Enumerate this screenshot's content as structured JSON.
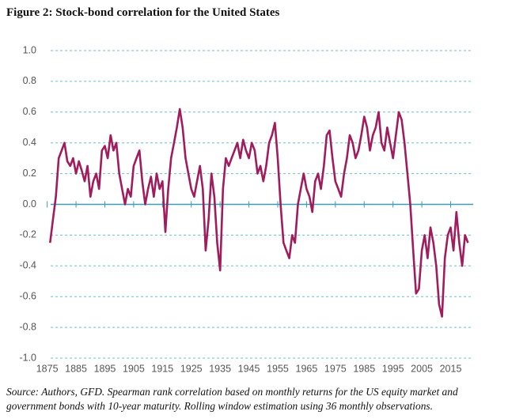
{
  "chart_data": {
    "type": "line",
    "title": "Figure 2: Stock-bond correlation for the United States",
    "source": "Source: Authors, GFD. Spearman rank correlation based on monthly returns for the US equity market and government bonds with 10-year maturity. Rolling window estimation using 36 monthly observations.",
    "color": "#a01c5c",
    "grid": true,
    "x": [
      1876,
      1877,
      1878,
      1879,
      1880,
      1881,
      1882,
      1883,
      1884,
      1885,
      1886,
      1887,
      1888,
      1889,
      1890,
      1891,
      1892,
      1893,
      1894,
      1895,
      1896,
      1897,
      1898,
      1899,
      1900,
      1901,
      1902,
      1903,
      1904,
      1905,
      1906,
      1907,
      1908,
      1909,
      1910,
      1911,
      1912,
      1913,
      1914,
      1915,
      1916,
      1917,
      1918,
      1919,
      1920,
      1921,
      1922,
      1923,
      1924,
      1925,
      1926,
      1927,
      1928,
      1929,
      1930,
      1931,
      1932,
      1933,
      1934,
      1935,
      1936,
      1937,
      1938,
      1939,
      1940,
      1941,
      1942,
      1943,
      1944,
      1945,
      1946,
      1947,
      1948,
      1949,
      1950,
      1951,
      1952,
      1953,
      1954,
      1955,
      1956,
      1957,
      1958,
      1959,
      1960,
      1961,
      1962,
      1963,
      1964,
      1965,
      1966,
      1967,
      1968,
      1969,
      1970,
      1971,
      1972,
      1973,
      1974,
      1975,
      1976,
      1977,
      1978,
      1979,
      1980,
      1981,
      1982,
      1983,
      1984,
      1985,
      1986,
      1987,
      1988,
      1989,
      1990,
      1991,
      1992,
      1993,
      1994,
      1995,
      1996,
      1997,
      1998,
      1999,
      2000,
      2001,
      2002,
      2003,
      2004,
      2005,
      2006,
      2007,
      2008,
      2009,
      2010,
      2011,
      2012,
      2013,
      2014,
      2015,
      2016,
      2017,
      2018,
      2019,
      2020,
      2021
    ],
    "values": [
      -0.25,
      -0.1,
      0.05,
      0.3,
      0.35,
      0.4,
      0.28,
      0.25,
      0.3,
      0.2,
      0.28,
      0.22,
      0.15,
      0.25,
      0.05,
      0.15,
      0.2,
      0.1,
      0.35,
      0.38,
      0.3,
      0.45,
      0.35,
      0.4,
      0.2,
      0.1,
      0.0,
      0.1,
      0.05,
      0.25,
      0.3,
      0.35,
      0.15,
      0.0,
      0.1,
      0.18,
      0.05,
      0.2,
      0.1,
      0.15,
      -0.18,
      0.1,
      0.3,
      0.4,
      0.5,
      0.62,
      0.5,
      0.3,
      0.2,
      0.1,
      0.05,
      0.15,
      0.25,
      0.1,
      -0.3,
      -0.1,
      0.2,
      0.05,
      -0.25,
      -0.43,
      0.1,
      0.3,
      0.25,
      0.3,
      0.35,
      0.4,
      0.3,
      0.42,
      0.35,
      0.3,
      0.4,
      0.35,
      0.2,
      0.25,
      0.15,
      0.25,
      0.4,
      0.45,
      0.53,
      0.3,
      0.0,
      -0.25,
      -0.3,
      -0.35,
      -0.2,
      -0.25,
      0.0,
      0.1,
      0.2,
      0.1,
      0.05,
      -0.05,
      0.15,
      0.2,
      0.1,
      0.25,
      0.45,
      0.48,
      0.3,
      0.15,
      0.1,
      0.05,
      0.2,
      0.3,
      0.45,
      0.4,
      0.3,
      0.35,
      0.45,
      0.57,
      0.5,
      0.35,
      0.45,
      0.5,
      0.6,
      0.4,
      0.35,
      0.5,
      0.4,
      0.3,
      0.45,
      0.6,
      0.55,
      0.4,
      0.2,
      0.0,
      -0.3,
      -0.58,
      -0.55,
      -0.3,
      -0.2,
      -0.35,
      -0.15,
      -0.25,
      -0.4,
      -0.65,
      -0.73,
      -0.35,
      -0.2,
      -0.15,
      -0.3,
      -0.05,
      -0.25,
      -0.4,
      -0.2,
      -0.25
    ],
    "xlim": [
      1874,
      2022
    ],
    "xticks": [
      1875,
      1885,
      1895,
      1905,
      1915,
      1925,
      1935,
      1945,
      1955,
      1965,
      1975,
      1985,
      1995,
      2005,
      2015
    ],
    "ylim": [
      -1,
      1
    ],
    "yticks": [
      {
        "value": 1,
        "label": "1.0"
      },
      0.8,
      0.6,
      0.4,
      0.2,
      {
        "value": 0,
        "label": "0.0"
      },
      -0.2,
      -0.4,
      -0.6,
      -0.8,
      {
        "value": -1,
        "label": "-1.0"
      }
    ]
  }
}
